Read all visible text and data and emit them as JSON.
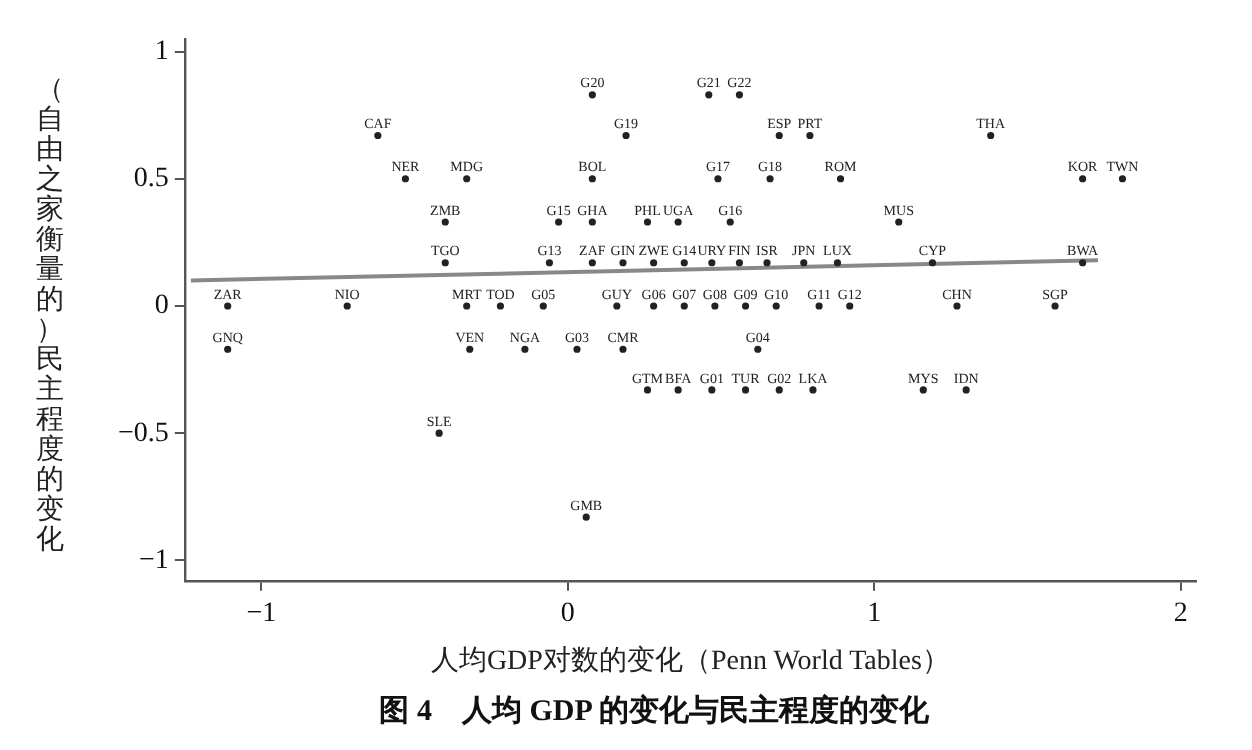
{
  "chart_data": {
    "type": "scatter",
    "title": "图 4　人均 GDP 的变化与民主程度的变化",
    "xlabel": "人均GDP对数的变化（Penn World Tables）",
    "ylabel": "（自由之家衡量的）民主程度的变化",
    "xlim": [
      -1.25,
      2.05
    ],
    "xticks": [
      -1,
      0,
      1,
      2
    ],
    "ylim": [
      -1.08,
      1.05
    ],
    "yticks": [
      -1,
      -0.5,
      0,
      0.5,
      1
    ],
    "grid": false,
    "legend": false,
    "series": [
      {
        "color": "#222222",
        "marker": "circle",
        "x": [
          0.08,
          0.46,
          0.56,
          -0.62,
          0.19,
          0.69,
          0.79,
          1.38,
          -0.53,
          -0.33,
          0.08,
          0.49,
          0.66,
          0.89,
          1.68,
          1.81,
          -0.4,
          -0.03,
          0.08,
          0.26,
          0.36,
          0.53,
          1.08,
          -0.4,
          -0.06,
          0.08,
          0.18,
          0.28,
          0.38,
          0.47,
          0.56,
          0.65,
          0.77,
          0.88,
          1.19,
          1.68,
          -1.11,
          -0.72,
          -0.33,
          -0.22,
          -0.08,
          0.16,
          0.28,
          0.38,
          0.48,
          0.58,
          0.68,
          0.82,
          0.92,
          1.27,
          1.59,
          -1.11,
          -0.32,
          -0.14,
          0.03,
          0.18,
          0.62,
          0.26,
          0.36,
          0.47,
          0.58,
          0.69,
          0.8,
          1.16,
          1.3,
          -0.42,
          0.06
        ],
        "values": [
          0.83,
          0.83,
          0.83,
          0.67,
          0.67,
          0.67,
          0.67,
          0.67,
          0.5,
          0.5,
          0.5,
          0.5,
          0.5,
          0.5,
          0.5,
          0.5,
          0.33,
          0.33,
          0.33,
          0.33,
          0.33,
          0.33,
          0.33,
          0.17,
          0.17,
          0.17,
          0.17,
          0.17,
          0.17,
          0.17,
          0.17,
          0.17,
          0.17,
          0.17,
          0.17,
          0.17,
          0,
          0,
          0,
          0,
          0,
          0,
          0,
          0,
          0,
          0,
          0,
          0,
          0,
          0,
          0,
          -0.17,
          -0.17,
          -0.17,
          -0.17,
          -0.17,
          -0.17,
          -0.33,
          -0.33,
          -0.33,
          -0.33,
          -0.33,
          -0.33,
          -0.33,
          -0.33,
          -0.5,
          -0.83
        ],
        "value_labels": [
          "G20",
          "G21",
          "G22",
          "CAF",
          "G19",
          "ESP",
          "PRT",
          "THA",
          "NER",
          "MDG",
          "BOL",
          "G17",
          "G18",
          "ROM",
          "KOR",
          "TWN",
          "ZMB",
          "G15",
          "GHA",
          "PHL",
          "UGA",
          "G16",
          "MUS",
          "TGO",
          "G13",
          "ZAF",
          "GIN",
          "ZWE",
          "G14",
          "URY",
          "FIN",
          "ISR",
          "JPN",
          "LUX",
          "CYP",
          "BWA",
          "ZAR",
          "NIO",
          "MRT",
          "TOD",
          "G05",
          "GUY",
          "G06",
          "G07",
          "G08",
          "G09",
          "G10",
          "G11",
          "G12",
          "CHN",
          "SGP",
          "GNQ",
          "VEN",
          "NGA",
          "G03",
          "CMR",
          "G04",
          "GTM",
          "BFA",
          "G01",
          "TUR",
          "G02",
          "LKA",
          "MYS",
          "IDN",
          "SLE",
          "GMB"
        ]
      },
      {
        "type": "line",
        "marker": "none",
        "color": "#888888",
        "x": [
          -1.23,
          1.73
        ],
        "values": [
          0.1,
          0.18
        ]
      }
    ]
  }
}
